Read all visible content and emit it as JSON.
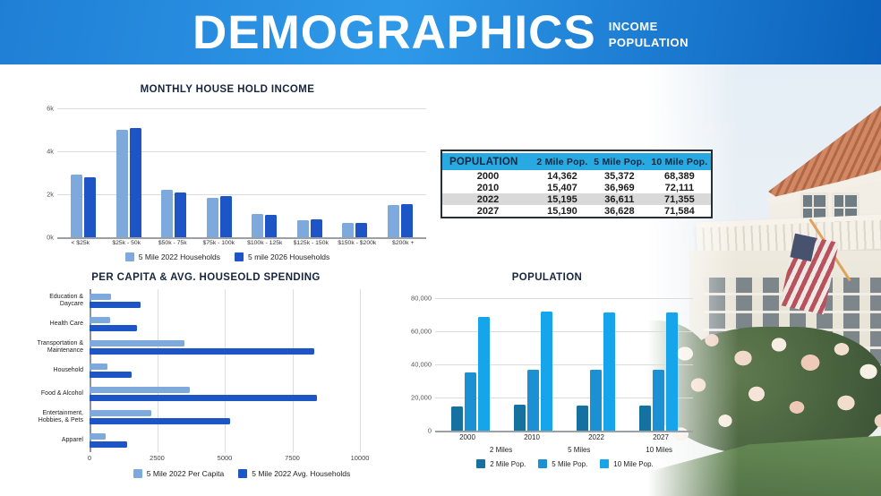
{
  "header": {
    "title": "DEMOGRAPHICS",
    "subtitle_line1": "INCOME",
    "subtitle_line2": "POPULATION"
  },
  "colors": {
    "header_gradient_start": "#1f7fd4",
    "header_gradient_end": "#0b61bb",
    "light_blue_series": "#7ea9dc",
    "dark_blue_series": "#1d55c6",
    "table_header_bg": "#29a9e1",
    "table_highlight_row": "#d9d9d9"
  },
  "chart_data": [
    {
      "id": "income",
      "type": "bar",
      "title": "MONTHLY HOUSE HOLD INCOME",
      "categories": [
        "< $25k",
        "$25k - 50k",
        "$50k - 75k",
        "$75k - 100k",
        "$100k - 125k",
        "$125k - 150k",
        "$150k - $200k",
        "$200k +"
      ],
      "series": [
        {
          "name": "5 Mile 2022 Households",
          "color": "#7ea9dc",
          "values": [
            2900,
            5000,
            2200,
            1850,
            1100,
            800,
            650,
            1500
          ]
        },
        {
          "name": "5 mile 2026 Households",
          "color": "#1d55c6",
          "values": [
            2800,
            5100,
            2100,
            1900,
            1050,
            850,
            650,
            1550
          ]
        }
      ],
      "ylim": [
        0,
        6000
      ],
      "ytick_values": [
        0,
        2000,
        4000,
        6000
      ],
      "ytick_labels": [
        "0k",
        "2k",
        "4k",
        "6k"
      ],
      "grid": true,
      "legend_position": "bottom"
    },
    {
      "id": "population-table",
      "type": "table",
      "columns": [
        "POPULATION",
        "2 Mile Pop.",
        "5 Mile Pop.",
        "10 Mile Pop."
      ],
      "rows": [
        [
          "2000",
          "14,362",
          "35,372",
          "68,389"
        ],
        [
          "2010",
          "15,407",
          "36,969",
          "72,111"
        ],
        [
          "2022",
          "15,195",
          "36,611",
          "71,355"
        ],
        [
          "2027",
          "15,190",
          "36,628",
          "71,584"
        ]
      ],
      "highlighted_row_index": 2
    },
    {
      "id": "spending",
      "type": "bar",
      "orientation": "horizontal",
      "title": "PER CAPITA & AVG. HOUSEOLD SPENDING",
      "categories": [
        "Education &\nDaycare",
        "Health Care",
        "Transportation &\nMaintenance",
        "Household",
        "Food & Alcohol",
        "Entertainment,\nHobbies, & Pets",
        "Apparel"
      ],
      "series": [
        {
          "name": "5 Mile 2022 Per Capita",
          "color": "#7ea9dc",
          "values": [
            800,
            750,
            3500,
            650,
            3700,
            2300,
            600
          ]
        },
        {
          "name": "5 Mile 2022 Avg. Households",
          "color": "#1d55c6",
          "values": [
            1900,
            1750,
            8300,
            1550,
            8400,
            5200,
            1400
          ]
        }
      ],
      "xlim": [
        0,
        10000
      ],
      "xtick_values": [
        0,
        2500,
        5000,
        7500,
        10000
      ],
      "xtick_labels": [
        "0",
        "2500",
        "5000",
        "7500",
        "10000"
      ],
      "grid": true,
      "legend_position": "bottom"
    },
    {
      "id": "population",
      "type": "bar",
      "title": "POPULATION",
      "categories": [
        "2000",
        "2010",
        "2022",
        "2027"
      ],
      "series": [
        {
          "name": "2 Mile Pop.",
          "color": "#15719f",
          "values": [
            14362,
            15407,
            15195,
            15190
          ]
        },
        {
          "name": "5 Mile Pop.",
          "color": "#1b90d3",
          "values": [
            35372,
            36969,
            36611,
            36628
          ]
        },
        {
          "name": "10 Mile Pop.",
          "color": "#16a5ea",
          "values": [
            68389,
            72111,
            71355,
            71584
          ]
        }
      ],
      "ylim": [
        0,
        80000
      ],
      "ytick_values": [
        0,
        20000,
        40000,
        60000,
        80000
      ],
      "ytick_labels": [
        "0",
        "20,000",
        "40,000",
        "60,000",
        "80,000"
      ],
      "secondary_axis_labels": [
        "2 Miles",
        "5 Miles",
        "10 Miles"
      ],
      "grid": true,
      "legend_position": "bottom"
    }
  ]
}
